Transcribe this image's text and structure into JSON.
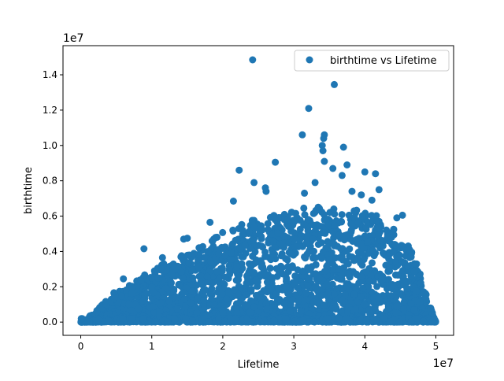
{
  "chart_data": {
    "type": "scatter",
    "xlabel": "Lifetime",
    "ylabel": "birthtime",
    "x_offset_label": "1e7",
    "y_offset_label": "1e7",
    "x_scale": 10000000,
    "y_scale": 10000000,
    "xlim": [
      -2500000,
      52500000
    ],
    "ylim": [
      -750000,
      15650000
    ],
    "x_ticks": [
      0,
      10000000,
      20000000,
      30000000,
      40000000,
      50000000
    ],
    "x_tick_labels": [
      "0",
      "1",
      "2",
      "3",
      "4",
      "5"
    ],
    "y_ticks": [
      0,
      2000000,
      4000000,
      6000000,
      8000000,
      10000000,
      12000000,
      14000000
    ],
    "y_tick_labels": [
      "0.0",
      "0.2",
      "0.4",
      "0.6",
      "0.8",
      "1.0",
      "1.2",
      "1.4"
    ],
    "grid": false,
    "legend_position": "top-right",
    "series": [
      {
        "name": "birthtime vs Lifetime",
        "color": "#1f77b4",
        "outlier_points": [
          [
            24200000,
            14850000
          ],
          [
            35700000,
            13450000
          ],
          [
            32100000,
            12100000
          ],
          [
            31200000,
            10600000
          ],
          [
            34300000,
            10600000
          ],
          [
            34200000,
            10400000
          ],
          [
            34000000,
            10000000
          ],
          [
            34100000,
            9700000
          ],
          [
            37000000,
            9900000
          ],
          [
            34300000,
            9100000
          ],
          [
            37500000,
            8900000
          ],
          [
            27400000,
            9050000
          ],
          [
            22300000,
            8600000
          ],
          [
            40000000,
            8500000
          ],
          [
            41500000,
            8400000
          ],
          [
            24400000,
            7900000
          ],
          [
            26000000,
            7600000
          ],
          [
            26100000,
            7400000
          ],
          [
            35500000,
            8700000
          ],
          [
            36800000,
            8300000
          ],
          [
            33000000,
            7900000
          ],
          [
            42000000,
            7500000
          ],
          [
            38200000,
            7400000
          ],
          [
            8900000,
            4150000
          ],
          [
            15000000,
            4750000
          ],
          [
            14500000,
            4700000
          ],
          [
            18200000,
            5650000
          ],
          [
            21500000,
            6850000
          ],
          [
            31500000,
            7300000
          ],
          [
            39500000,
            7200000
          ],
          [
            41000000,
            6900000
          ],
          [
            45300000,
            6050000
          ],
          [
            44500000,
            5900000
          ],
          [
            6000000,
            2450000
          ],
          [
            8500000,
            2350000
          ],
          [
            11500000,
            3650000
          ],
          [
            13000000,
            3250000
          ]
        ],
        "density_envelope": [
          [
            0,
            0
          ],
          [
            2500000,
            650000
          ],
          [
            5000000,
            1500000
          ],
          [
            7500000,
            1900000
          ],
          [
            10000000,
            2500000
          ],
          [
            12500000,
            2900000
          ],
          [
            15000000,
            3300000
          ],
          [
            17500000,
            3800000
          ],
          [
            20000000,
            4300000
          ],
          [
            22500000,
            4600000
          ],
          [
            25000000,
            4900000
          ],
          [
            27500000,
            5100000
          ],
          [
            30000000,
            5300000
          ],
          [
            32500000,
            5500000
          ],
          [
            35000000,
            5500000
          ],
          [
            37500000,
            5400000
          ],
          [
            40000000,
            5200000
          ],
          [
            42500000,
            5000000
          ],
          [
            45000000,
            4200000
          ],
          [
            46500000,
            3500000
          ],
          [
            48000000,
            2200000
          ],
          [
            49000000,
            1200000
          ],
          [
            50000000,
            0
          ]
        ]
      }
    ]
  }
}
